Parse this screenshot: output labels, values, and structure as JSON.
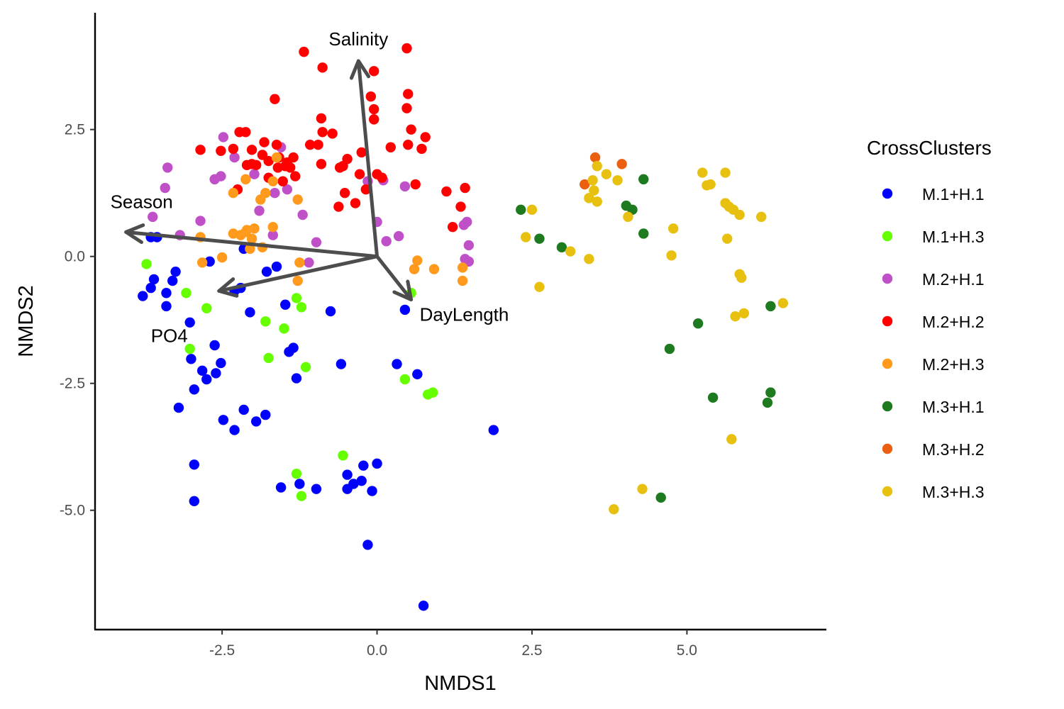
{
  "chart_data": {
    "type": "scatter",
    "title": "",
    "xlabel": "NMDS1",
    "ylabel": "NMDS2",
    "xlim": [
      -4.55,
      7.25
    ],
    "ylim": [
      -7.35,
      4.8
    ],
    "x_ticks": [
      -2.5,
      0.0,
      2.5,
      5.0
    ],
    "x_tick_labels": [
      "-2.5",
      "0.0",
      "2.5",
      "5.0"
    ],
    "y_ticks": [
      -5.0,
      -2.5,
      0.0,
      2.5
    ],
    "y_tick_labels": [
      "-5.0",
      "-2.5",
      "0.0",
      "2.5"
    ],
    "grid": false,
    "legend": {
      "title": "CrossClusters",
      "position": "right"
    },
    "series": [
      {
        "name": "M.1+H.1",
        "color": "#0000ff",
        "points": [
          [
            -3.55,
            0.38
          ],
          [
            -3.65,
            0.38
          ],
          [
            -3.25,
            -0.3
          ],
          [
            -3.6,
            -0.45
          ],
          [
            -3.65,
            -0.62
          ],
          [
            -3.78,
            -0.78
          ],
          [
            -3.4,
            -0.72
          ],
          [
            -3.4,
            -0.98
          ],
          [
            -3.3,
            -0.48
          ],
          [
            -2.7,
            -0.1
          ],
          [
            -2.15,
            0.15
          ],
          [
            -1.78,
            -0.3
          ],
          [
            -1.62,
            -0.2
          ],
          [
            -2.2,
            -0.62
          ],
          [
            -2.3,
            -0.68
          ],
          [
            -2.05,
            -1.1
          ],
          [
            -1.48,
            -0.95
          ],
          [
            -0.75,
            -1.08
          ],
          [
            -3.02,
            -1.3
          ],
          [
            -2.62,
            -1.75
          ],
          [
            -3.0,
            -2.02
          ],
          [
            -2.82,
            -2.25
          ],
          [
            -2.75,
            -2.42
          ],
          [
            -2.52,
            -2.1
          ],
          [
            -2.6,
            -2.3
          ],
          [
            -2.95,
            -2.62
          ],
          [
            -3.2,
            -2.98
          ],
          [
            -1.42,
            -1.88
          ],
          [
            -1.35,
            -1.8
          ],
          [
            -1.3,
            -2.4
          ],
          [
            -0.58,
            -2.12
          ],
          [
            0.32,
            -2.12
          ],
          [
            0.65,
            -2.32
          ],
          [
            0.45,
            -1.05
          ],
          [
            -2.48,
            -3.22
          ],
          [
            -2.3,
            -3.42
          ],
          [
            -2.15,
            -3.02
          ],
          [
            -1.95,
            -3.25
          ],
          [
            -1.8,
            -3.12
          ],
          [
            -2.95,
            -4.1
          ],
          [
            -2.95,
            -4.82
          ],
          [
            -1.55,
            -4.55
          ],
          [
            -1.25,
            -4.48
          ],
          [
            -0.98,
            -4.58
          ],
          [
            -0.48,
            -4.3
          ],
          [
            -0.38,
            -4.48
          ],
          [
            -0.25,
            -4.42
          ],
          [
            -0.22,
            -4.12
          ],
          [
            0.0,
            -4.08
          ],
          [
            -0.48,
            -4.58
          ],
          [
            -0.08,
            -4.62
          ],
          [
            -0.15,
            -5.68
          ],
          [
            0.75,
            -6.88
          ],
          [
            1.88,
            -3.42
          ]
        ]
      },
      {
        "name": "M.1+H.3",
        "color": "#66ff00",
        "points": [
          [
            -3.72,
            -0.15
          ],
          [
            -3.08,
            -0.72
          ],
          [
            -2.75,
            -1.02
          ],
          [
            -3.02,
            -1.82
          ],
          [
            -1.8,
            -1.28
          ],
          [
            -1.5,
            -1.42
          ],
          [
            -1.3,
            -0.82
          ],
          [
            -1.22,
            -1.0
          ],
          [
            -1.75,
            -2.0
          ],
          [
            -1.15,
            -2.18
          ],
          [
            0.55,
            -0.72
          ],
          [
            0.45,
            -2.42
          ],
          [
            0.82,
            -2.72
          ],
          [
            0.9,
            -2.68
          ],
          [
            -0.55,
            -3.92
          ],
          [
            -1.3,
            -4.28
          ],
          [
            -1.22,
            -4.72
          ]
        ]
      },
      {
        "name": "M.2+H.1",
        "color": "#c050c8",
        "points": [
          [
            -3.38,
            1.75
          ],
          [
            -3.42,
            1.35
          ],
          [
            -3.62,
            0.78
          ],
          [
            -3.18,
            0.42
          ],
          [
            -2.85,
            0.7
          ],
          [
            -2.48,
            2.35
          ],
          [
            -2.52,
            1.58
          ],
          [
            -2.62,
            1.52
          ],
          [
            -2.3,
            1.95
          ],
          [
            -1.98,
            1.62
          ],
          [
            -1.9,
            0.9
          ],
          [
            -1.65,
            1.25
          ],
          [
            -1.55,
            2.15
          ],
          [
            -1.68,
            0.42
          ],
          [
            -1.45,
            1.32
          ],
          [
            -1.2,
            0.82
          ],
          [
            -1.1,
            -0.12
          ],
          [
            -0.98,
            0.28
          ],
          [
            -0.15,
            1.48
          ],
          [
            0.1,
            1.5
          ],
          [
            0.0,
            0.68
          ],
          [
            0.15,
            0.3
          ],
          [
            0.35,
            0.4
          ],
          [
            0.45,
            1.38
          ],
          [
            1.4,
            0.62
          ],
          [
            1.45,
            0.68
          ],
          [
            1.48,
            0.22
          ],
          [
            1.42,
            -0.05
          ],
          [
            1.48,
            -0.1
          ]
        ]
      },
      {
        "name": "M.2+H.2",
        "color": "#ff0000",
        "points": [
          [
            -1.18,
            4.03
          ],
          [
            -0.88,
            3.72
          ],
          [
            0.48,
            4.1
          ],
          [
            -0.05,
            3.65
          ],
          [
            -1.65,
            3.1
          ],
          [
            -0.9,
            2.72
          ],
          [
            -0.1,
            3.15
          ],
          [
            -0.05,
            2.9
          ],
          [
            -0.05,
            2.7
          ],
          [
            0.5,
            3.2
          ],
          [
            0.48,
            2.92
          ],
          [
            -0.88,
            2.45
          ],
          [
            -0.72,
            2.42
          ],
          [
            -0.95,
            2.2
          ],
          [
            0.5,
            2.2
          ],
          [
            0.55,
            2.5
          ],
          [
            0.78,
            2.35
          ],
          [
            0.72,
            2.12
          ],
          [
            0.22,
            2.15
          ],
          [
            -2.85,
            2.1
          ],
          [
            -2.52,
            2.08
          ],
          [
            -2.22,
            2.45
          ],
          [
            -2.12,
            2.45
          ],
          [
            -2.32,
            2.12
          ],
          [
            -2.02,
            2.1
          ],
          [
            -1.82,
            2.25
          ],
          [
            -1.85,
            2.0
          ],
          [
            -1.75,
            1.88
          ],
          [
            -1.62,
            2.2
          ],
          [
            -1.58,
            1.95
          ],
          [
            -1.45,
            1.85
          ],
          [
            -1.35,
            1.95
          ],
          [
            -1.08,
            2.2
          ],
          [
            -0.9,
            1.82
          ],
          [
            -1.75,
            1.55
          ],
          [
            -1.6,
            1.75
          ],
          [
            -1.48,
            1.78
          ],
          [
            -1.4,
            1.75
          ],
          [
            -1.52,
            1.48
          ],
          [
            -1.32,
            1.58
          ],
          [
            -2.1,
            1.8
          ],
          [
            -2.02,
            1.82
          ],
          [
            -1.95,
            1.8
          ],
          [
            -0.6,
            1.75
          ],
          [
            -0.55,
            1.78
          ],
          [
            -0.28,
            1.62
          ],
          [
            -0.48,
            1.92
          ],
          [
            -0.25,
            2.05
          ],
          [
            -0.52,
            1.25
          ],
          [
            -0.18,
            1.32
          ],
          [
            0.0,
            1.62
          ],
          [
            0.08,
            1.55
          ],
          [
            -0.62,
            0.98
          ],
          [
            -0.35,
            1.05
          ],
          [
            -2.25,
            1.32
          ],
          [
            0.62,
            1.42
          ],
          [
            1.12,
            1.28
          ],
          [
            1.42,
            1.35
          ],
          [
            1.35,
            0.98
          ],
          [
            1.22,
            0.58
          ]
        ]
      },
      {
        "name": "M.2+H.3",
        "color": "#ff9a1c",
        "points": [
          [
            -2.12,
            1.52
          ],
          [
            -1.88,
            1.12
          ],
          [
            -1.8,
            1.25
          ],
          [
            -1.68,
            1.48
          ],
          [
            -2.32,
            1.25
          ],
          [
            -1.28,
            1.12
          ],
          [
            -1.62,
            1.95
          ],
          [
            -2.85,
            0.38
          ],
          [
            -2.32,
            0.45
          ],
          [
            -2.1,
            0.52
          ],
          [
            -2.12,
            0.48
          ],
          [
            -1.98,
            0.55
          ],
          [
            -2.2,
            0.42
          ],
          [
            -2.02,
            0.35
          ],
          [
            -1.68,
            0.58
          ],
          [
            -2.5,
            -0.02
          ],
          [
            -2.82,
            -0.12
          ],
          [
            -2.05,
            0.15
          ],
          [
            -1.85,
            0.18
          ],
          [
            -1.25,
            -0.12
          ],
          [
            -1.28,
            -0.48
          ],
          [
            0.65,
            -0.08
          ],
          [
            0.6,
            -0.25
          ],
          [
            0.92,
            -0.25
          ],
          [
            1.38,
            -0.22
          ],
          [
            1.38,
            -0.48
          ]
        ]
      },
      {
        "name": "M.3+H.1",
        "color": "#1e7a1e",
        "points": [
          [
            2.32,
            0.92
          ],
          [
            2.62,
            0.35
          ],
          [
            2.98,
            0.18
          ],
          [
            4.02,
            1.0
          ],
          [
            4.12,
            0.92
          ],
          [
            4.3,
            1.52
          ],
          [
            4.3,
            0.45
          ],
          [
            4.72,
            -1.82
          ],
          [
            5.18,
            -1.32
          ],
          [
            5.42,
            -2.78
          ],
          [
            6.35,
            -0.98
          ],
          [
            6.35,
            -2.68
          ],
          [
            6.3,
            -2.88
          ],
          [
            4.58,
            -4.75
          ]
        ]
      },
      {
        "name": "M.3+H.2",
        "color": "#ea6010",
        "points": [
          [
            3.52,
            1.95
          ],
          [
            3.95,
            1.82
          ],
          [
            3.35,
            1.42
          ]
        ]
      },
      {
        "name": "M.3+H.3",
        "color": "#e8c010",
        "points": [
          [
            2.5,
            0.92
          ],
          [
            2.4,
            0.38
          ],
          [
            2.62,
            -0.6
          ],
          [
            3.12,
            0.1
          ],
          [
            3.42,
            -0.05
          ],
          [
            3.48,
            1.5
          ],
          [
            3.55,
            1.78
          ],
          [
            3.7,
            1.62
          ],
          [
            3.88,
            1.5
          ],
          [
            3.5,
            1.3
          ],
          [
            3.42,
            1.15
          ],
          [
            3.55,
            1.08
          ],
          [
            4.05,
            0.78
          ],
          [
            4.78,
            0.55
          ],
          [
            4.75,
            0.02
          ],
          [
            5.25,
            1.65
          ],
          [
            5.32,
            1.4
          ],
          [
            5.38,
            1.42
          ],
          [
            5.62,
            1.65
          ],
          [
            5.62,
            1.05
          ],
          [
            5.68,
            0.98
          ],
          [
            5.75,
            0.92
          ],
          [
            5.85,
            0.82
          ],
          [
            5.65,
            0.35
          ],
          [
            6.2,
            0.78
          ],
          [
            5.85,
            -0.35
          ],
          [
            5.88,
            -0.42
          ],
          [
            5.78,
            -1.18
          ],
          [
            5.92,
            -1.12
          ],
          [
            6.55,
            -0.92
          ],
          [
            5.72,
            -3.6
          ],
          [
            4.28,
            -4.58
          ],
          [
            3.82,
            -4.98
          ]
        ]
      }
    ],
    "vectors": [
      {
        "name": "Salinity",
        "x": -0.3,
        "y": 3.85
      },
      {
        "name": "Season",
        "x": -4.05,
        "y": 0.48
      },
      {
        "name": "PO4",
        "x": -2.55,
        "y": -0.68
      },
      {
        "name": "DayLength",
        "x": 0.55,
        "y": -0.85
      }
    ],
    "vector_color": "#4d4d4d"
  }
}
